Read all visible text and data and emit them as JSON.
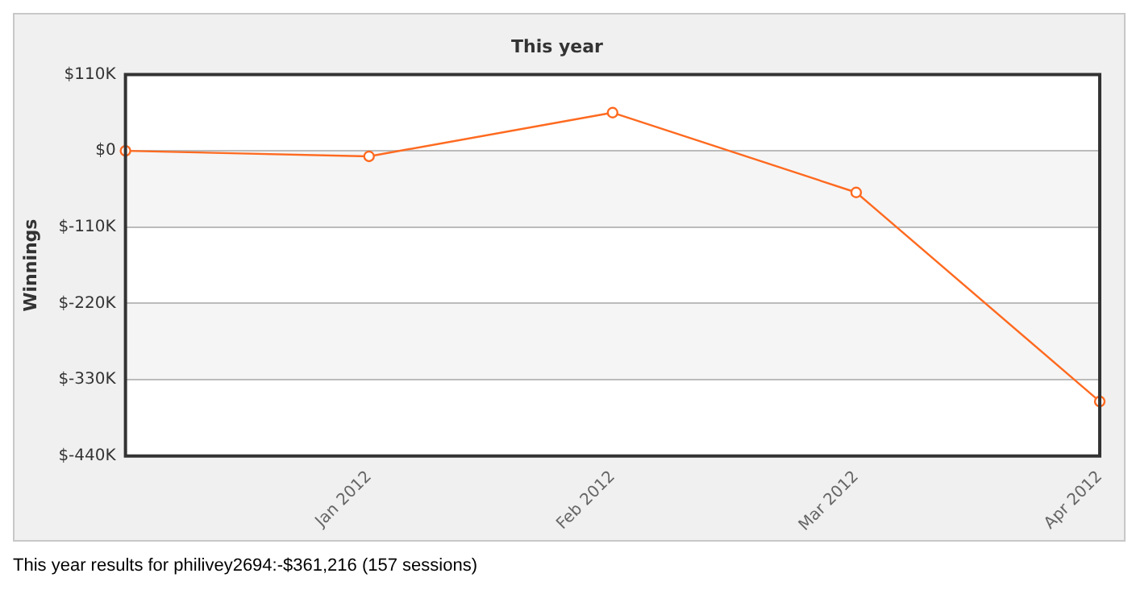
{
  "chart_data": {
    "type": "line",
    "title": "This year",
    "ylabel": "Winnings",
    "categories": [
      null,
      "Jan 2012",
      "Feb 2012",
      "Mar 2012",
      "Apr 2012"
    ],
    "series": [
      {
        "color": "#ff6a20",
        "values": [
          0,
          -8000,
          55000,
          -60000,
          -361216
        ]
      }
    ],
    "ylim": [
      -440000,
      110000
    ],
    "yticks": [
      {
        "value": -440000,
        "label": "$-440K"
      },
      {
        "value": -330000,
        "label": "$-330K"
      },
      {
        "value": -220000,
        "label": "$-220K"
      },
      {
        "value": -110000,
        "label": "$-110K"
      },
      {
        "value": 0,
        "label": "$0"
      },
      {
        "value": 110000,
        "label": "$110K"
      }
    ],
    "grid": "y",
    "legend": false,
    "marker": "circle",
    "line_style": "solid",
    "annotations": [
      "This year results for philivey2694:-$361,216 (157 sessions)"
    ]
  }
}
